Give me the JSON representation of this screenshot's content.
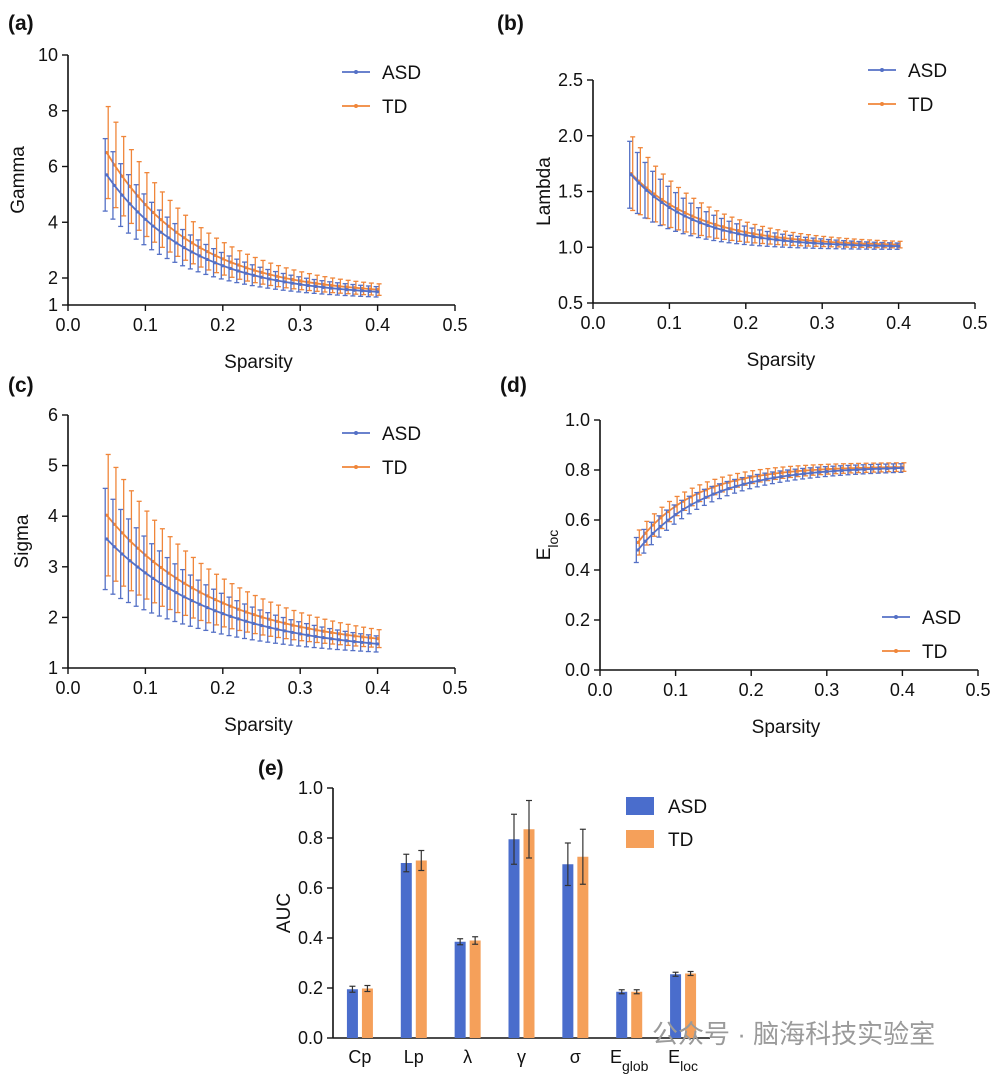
{
  "watermark": {
    "text": "公众号 · 脑海科技实验室"
  },
  "colors": {
    "ASD": "#5470c6",
    "TD": "#f0863a",
    "ASD_bar": "#4a6dcc",
    "TD_bar": "#f5a05a"
  },
  "chart_data": [
    {
      "id": "a",
      "panel_label": "(a)",
      "type": "line",
      "xlabel": "Sparsity",
      "ylabel": "Gamma",
      "xlim": [
        0.0,
        0.5
      ],
      "ylim": [
        1,
        10
      ],
      "xticks": [
        "0.0",
        "0.1",
        "0.2",
        "0.3",
        "0.4",
        "0.5"
      ],
      "yticks": [
        "1",
        "2",
        "4",
        "6",
        "8",
        "10"
      ],
      "ytick_values": [
        1,
        2,
        4,
        6,
        8,
        10
      ],
      "legend_position": "top-right",
      "series": [
        {
          "name": "ASD",
          "x_start": 0.05,
          "x_end": 0.4,
          "x_step": 0.01,
          "y_start": 5.7,
          "y_end": 1.3,
          "decay": 9.0,
          "err_start": 1.3,
          "err_end": 0.12,
          "err_decay": 8.0
        },
        {
          "name": "TD",
          "x_start": 0.05,
          "x_end": 0.4,
          "x_step": 0.01,
          "y_start": 6.5,
          "y_end": 1.35,
          "decay": 9.0,
          "err_start": 1.65,
          "err_end": 0.12,
          "err_decay": 8.0
        }
      ]
    },
    {
      "id": "b",
      "panel_label": "(b)",
      "type": "line",
      "xlabel": "Sparsity",
      "ylabel": "Lambda",
      "xlim": [
        0.0,
        0.5
      ],
      "ylim": [
        0.5,
        2.5
      ],
      "xticks": [
        "0.0",
        "0.1",
        "0.2",
        "0.3",
        "0.4",
        "0.5"
      ],
      "yticks": [
        "0.5",
        "1.0",
        "1.5",
        "2.0",
        "2.5"
      ],
      "ytick_values": [
        0.5,
        1.0,
        1.5,
        2.0,
        2.5
      ],
      "legend_position": "top-right",
      "series": [
        {
          "name": "ASD",
          "x_start": 0.05,
          "x_end": 0.4,
          "x_step": 0.01,
          "y_start": 1.65,
          "y_end": 1.0,
          "decay": 12.0,
          "err_start": 0.3,
          "err_end": 0.02,
          "err_decay": 10.0
        },
        {
          "name": "TD",
          "x_start": 0.05,
          "x_end": 0.4,
          "x_step": 0.01,
          "y_start": 1.66,
          "y_end": 1.01,
          "decay": 11.0,
          "err_start": 0.33,
          "err_end": 0.02,
          "err_decay": 10.0
        }
      ]
    },
    {
      "id": "c",
      "panel_label": "(c)",
      "type": "line",
      "xlabel": "Sparsity",
      "ylabel": "Sigma",
      "xlim": [
        0.0,
        0.5
      ],
      "ylim": [
        1,
        6
      ],
      "xticks": [
        "0.0",
        "0.1",
        "0.2",
        "0.3",
        "0.4",
        "0.5"
      ],
      "yticks": [
        "1",
        "2",
        "3",
        "4",
        "5",
        "6"
      ],
      "ytick_values": [
        1,
        2,
        3,
        4,
        5,
        6
      ],
      "legend_position": "top-right",
      "series": [
        {
          "name": "ASD",
          "x_start": 0.05,
          "x_end": 0.4,
          "x_step": 0.01,
          "y_start": 3.55,
          "y_end": 1.28,
          "decay": 7.0,
          "err_start": 1.0,
          "err_end": 0.08,
          "err_decay": 7.0
        },
        {
          "name": "TD",
          "x_start": 0.05,
          "x_end": 0.4,
          "x_step": 0.01,
          "y_start": 4.02,
          "y_end": 1.35,
          "decay": 7.0,
          "err_start": 1.2,
          "err_end": 0.08,
          "err_decay": 7.0
        }
      ]
    },
    {
      "id": "d",
      "panel_label": "(d)",
      "type": "line",
      "xlabel": "Sparsity",
      "ylabel": "E",
      "ylabel_sub": "loc",
      "xlim": [
        0.0,
        0.5
      ],
      "ylim": [
        0.0,
        1.0
      ],
      "xticks": [
        "0.0",
        "0.1",
        "0.2",
        "0.3",
        "0.4",
        "0.5"
      ],
      "yticks": [
        "0.0",
        "0.2",
        "0.4",
        "0.6",
        "0.8",
        "1.0"
      ],
      "ytick_values": [
        0.0,
        0.2,
        0.4,
        0.6,
        0.8,
        1.0
      ],
      "legend_position": "bottom-right",
      "series": [
        {
          "name": "ASD",
          "x_start": 0.05,
          "x_end": 0.4,
          "x_step": 0.01,
          "y_start": 0.48,
          "y_end": 0.815,
          "decay": 11.0,
          "err_start": 0.05,
          "err_end": 0.015,
          "err_decay": 8.0
        },
        {
          "name": "TD",
          "x_start": 0.05,
          "x_end": 0.4,
          "x_step": 0.01,
          "y_start": 0.51,
          "y_end": 0.815,
          "decay": 13.0,
          "err_start": 0.05,
          "err_end": 0.015,
          "err_decay": 8.0
        }
      ]
    },
    {
      "id": "e",
      "panel_label": "(e)",
      "type": "bar",
      "xlabel": "",
      "ylabel": "AUC",
      "ylim": [
        0.0,
        1.0
      ],
      "yticks": [
        "0.0",
        "0.2",
        "0.4",
        "0.6",
        "0.8",
        "1.0"
      ],
      "ytick_values": [
        0.0,
        0.2,
        0.4,
        0.6,
        0.8,
        1.0
      ],
      "legend_position": "top-right",
      "categories": [
        {
          "main": "Cp",
          "sub": ""
        },
        {
          "main": "Lp",
          "sub": ""
        },
        {
          "main": "λ",
          "sub": ""
        },
        {
          "main": "γ",
          "sub": ""
        },
        {
          "main": "σ",
          "sub": ""
        },
        {
          "main": "E",
          "sub": "glob"
        },
        {
          "main": "E",
          "sub": "loc"
        }
      ],
      "series": [
        {
          "name": "ASD",
          "values": [
            0.195,
            0.7,
            0.385,
            0.795,
            0.695,
            0.185,
            0.255
          ],
          "errors": [
            0.012,
            0.035,
            0.012,
            0.1,
            0.085,
            0.008,
            0.008
          ]
        },
        {
          "name": "TD",
          "values": [
            0.198,
            0.71,
            0.39,
            0.835,
            0.725,
            0.185,
            0.258
          ],
          "errors": [
            0.012,
            0.04,
            0.015,
            0.115,
            0.11,
            0.008,
            0.008
          ]
        }
      ]
    }
  ]
}
